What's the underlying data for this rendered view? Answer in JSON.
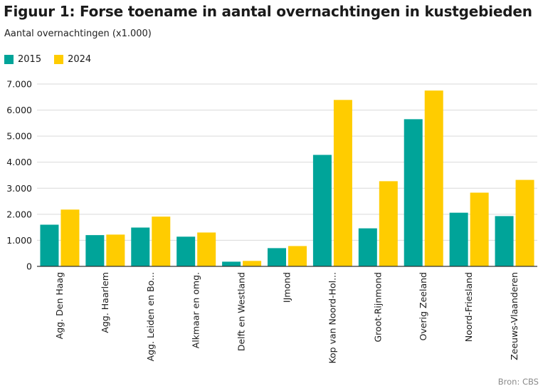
{
  "header": {
    "title": "Figuur 1: Forse toename in aantal overnachtingen in kustgebieden",
    "subtitle": "Aantal overnachtingen (x1.000)"
  },
  "footer": {
    "source": "Bron: CBS"
  },
  "colors": {
    "series_2015": "#00a499",
    "series_2024": "#ffcc00",
    "grid": "#d9d9d9",
    "axis": "#333333"
  },
  "chart_data": {
    "type": "bar",
    "title": "Figuur 1: Forse toename in aantal overnachtingen in kustgebieden",
    "ylabel": "Aantal overnachtingen (x1.000)",
    "xlabel": "",
    "ylim": [
      0,
      7000
    ],
    "yticks": [
      0,
      1000,
      2000,
      3000,
      4000,
      5000,
      6000,
      7000
    ],
    "ytick_labels": [
      "0",
      "1.000",
      "2.000",
      "3.000",
      "4.000",
      "5.000",
      "6.000",
      "7.000"
    ],
    "grid": true,
    "legend_position": "top-left",
    "categories": [
      "Agg. Den Haag",
      "Agg. Haarlem",
      "Agg. Leiden en Bo...",
      "Alkmaar en omg.",
      "Delft en Westland",
      "IJmond",
      "Kop van Noord-Hol...",
      "Groot-Rijnmond",
      "Overig Zeeland",
      "Noord-Friesland",
      "Zeeuws-Vlaanderen"
    ],
    "series": [
      {
        "name": "2015",
        "values": [
          1600,
          1200,
          1490,
          1140,
          180,
          700,
          4280,
          1460,
          5650,
          2060,
          1930
        ]
      },
      {
        "name": "2024",
        "values": [
          2180,
          1220,
          1910,
          1300,
          210,
          780,
          6390,
          3270,
          6750,
          2830,
          3320
        ]
      }
    ]
  }
}
